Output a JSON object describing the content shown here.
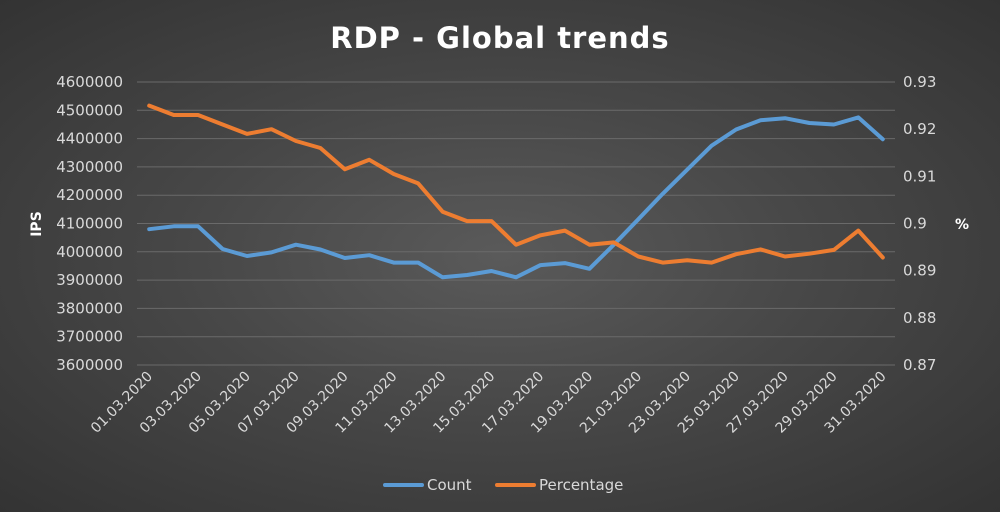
{
  "chart_data": {
    "type": "line",
    "title": "RDP - Global trends",
    "ylabel": "IPS",
    "y2label": "%",
    "ylim": [
      3600000,
      4600000
    ],
    "y_ticks": [
      3600000,
      3700000,
      3800000,
      3900000,
      4000000,
      4100000,
      4200000,
      4300000,
      4400000,
      4500000,
      4600000
    ],
    "y2lim": [
      0.87,
      0.93
    ],
    "y2_ticks": [
      0.87,
      0.88,
      0.89,
      0.9,
      0.91,
      0.92,
      0.93
    ],
    "x": [
      "01.03.2020",
      "02.03.2020",
      "03.03.2020",
      "04.03.2020",
      "05.03.2020",
      "06.03.2020",
      "07.03.2020",
      "08.03.2020",
      "09.03.2020",
      "10.03.2020",
      "11.03.2020",
      "12.03.2020",
      "13.03.2020",
      "14.03.2020",
      "15.03.2020",
      "16.03.2020",
      "17.03.2020",
      "18.03.2020",
      "19.03.2020",
      "20.03.2020",
      "21.03.2020",
      "22.03.2020",
      "23.03.2020",
      "24.03.2020",
      "25.03.2020",
      "26.03.2020",
      "27.03.2020",
      "28.03.2020",
      "29.03.2020",
      "30.03.2020",
      "31.03.2020"
    ],
    "x_tick_labels": [
      "01.03.2020",
      "03.03.2020",
      "05.03.2020",
      "07.03.2020",
      "09.03.2020",
      "11.03.2020",
      "13.03.2020",
      "15.03.2020",
      "17.03.2020",
      "19.03.2020",
      "21.03.2020",
      "23.03.2020",
      "25.03.2020",
      "27.03.2020",
      "29.03.2020",
      "31.03.2020"
    ],
    "series": [
      {
        "name": "Count",
        "axis": "left",
        "color": "#5b9bd5",
        "values": [
          4080000,
          4090000,
          4090000,
          4010000,
          3985000,
          3998000,
          4025000,
          4008000,
          3978000,
          3988000,
          3962000,
          3962000,
          3910000,
          3918000,
          3932000,
          3910000,
          3953000,
          3960000,
          3940000,
          4025000,
          4115000,
          4205000,
          4290000,
          4375000,
          4432000,
          4465000,
          4472000,
          4455000,
          4450000,
          4475000,
          4398000
        ]
      },
      {
        "name": "Percentage",
        "axis": "right",
        "color": "#ed7d31",
        "values": [
          0.925,
          0.923,
          0.923,
          0.921,
          0.919,
          0.92,
          0.9175,
          0.916,
          0.9115,
          0.9135,
          0.9105,
          0.9085,
          0.9025,
          0.9005,
          0.9005,
          0.8955,
          0.8975,
          0.8985,
          0.8955,
          0.896,
          0.893,
          0.8917,
          0.8922,
          0.8917,
          0.8935,
          0.8945,
          0.893,
          0.8936,
          0.8944,
          0.8985,
          0.8928
        ]
      }
    ],
    "grid": true,
    "legend": "bottom"
  }
}
